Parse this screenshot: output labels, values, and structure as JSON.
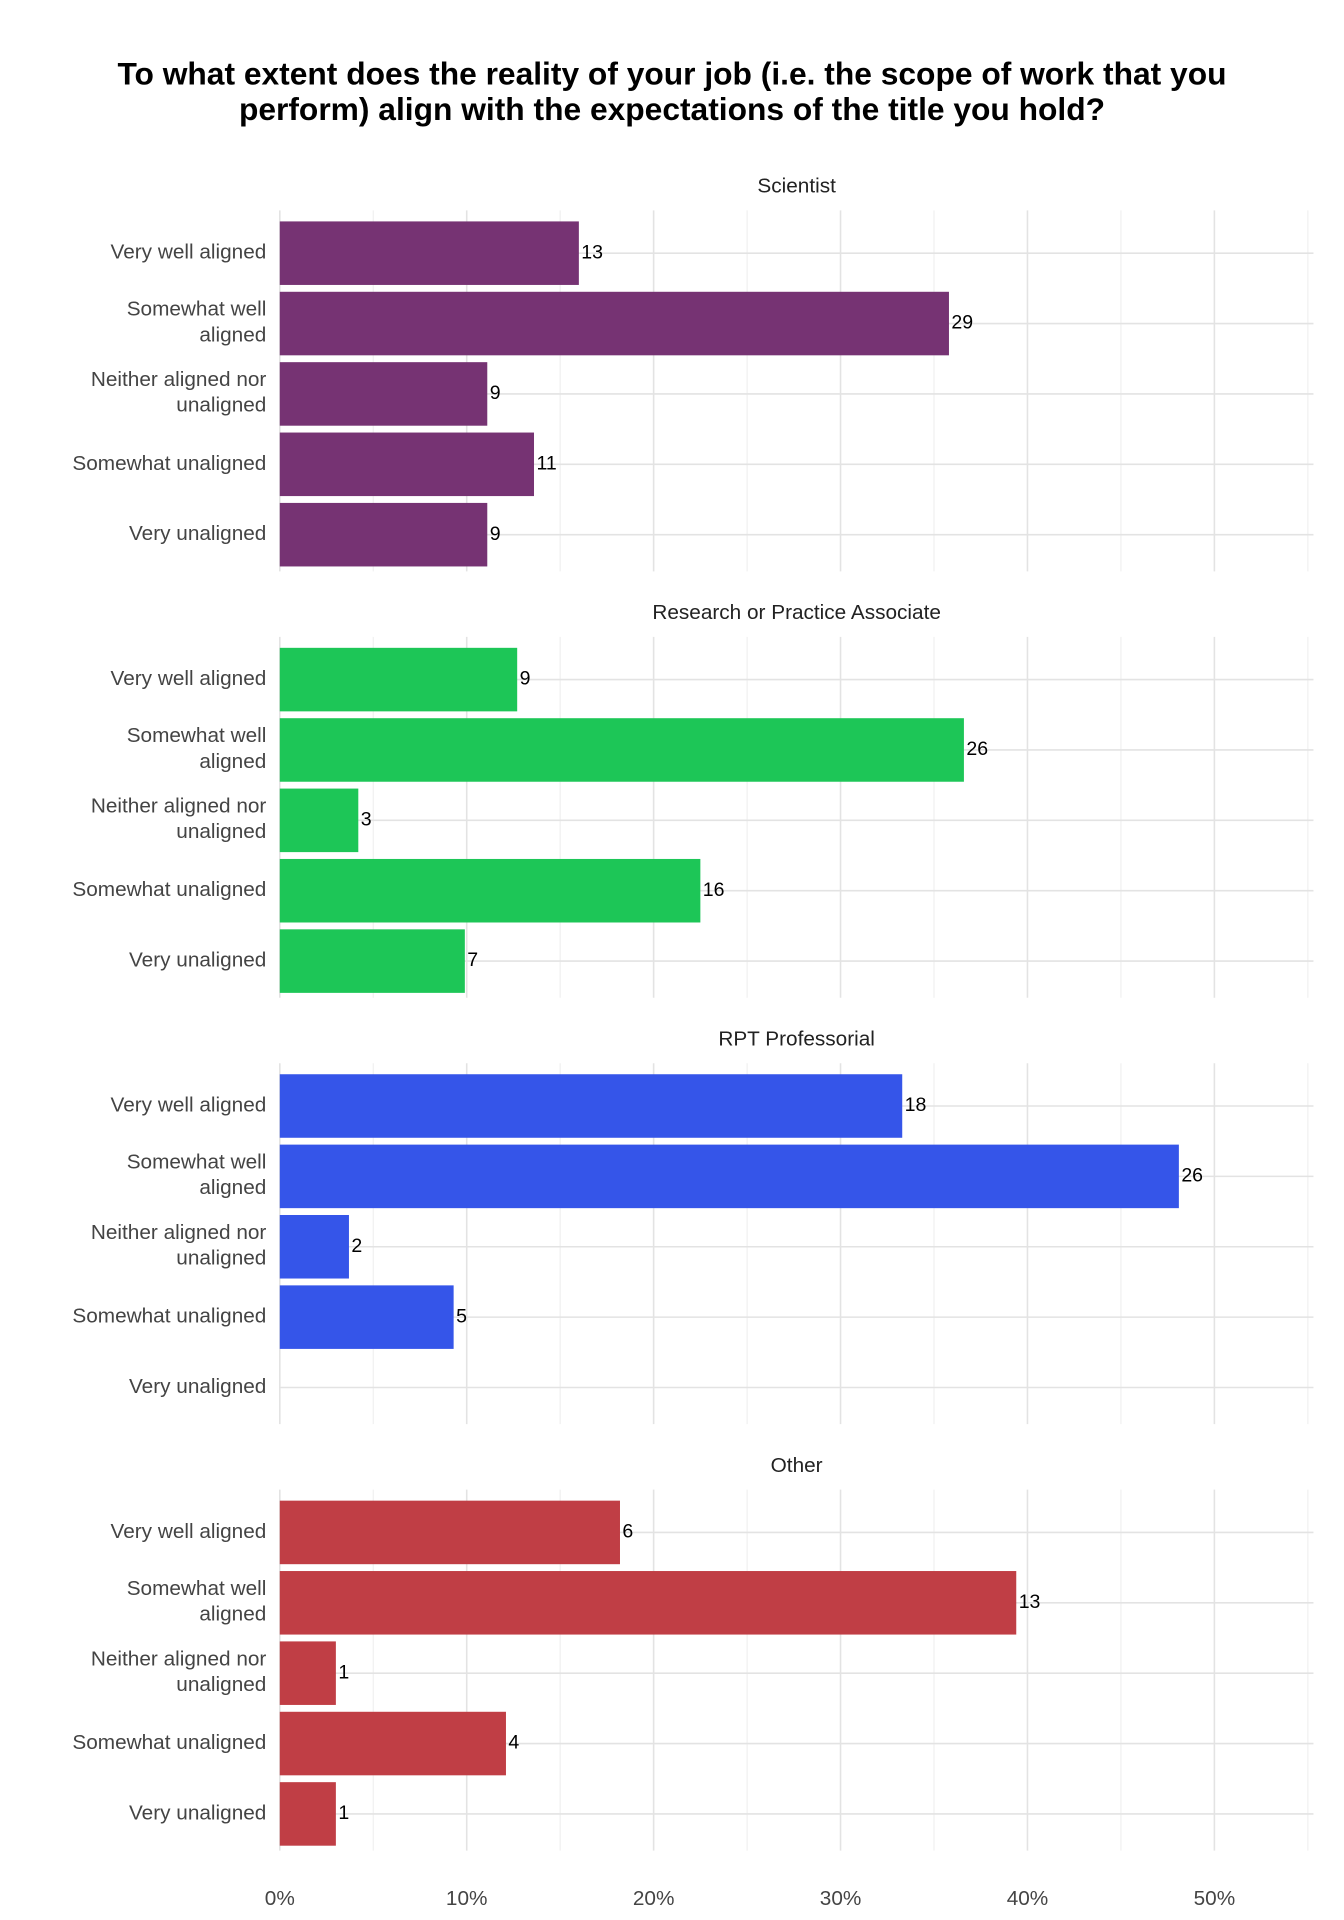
{
  "chart_data": {
    "type": "bar",
    "orientation": "horizontal",
    "title": "To what extent does the reality of your job (i.e. the scope of work that you perform) align with the expectations of the title you hold?",
    "categories": [
      "Very well aligned",
      "Somewhat well aligned",
      "Neither aligned nor unaligned",
      "Somewhat unaligned",
      "Very unaligned"
    ],
    "facets": [
      {
        "title": "Scientist",
        "color": "#763373",
        "values": [
          16.0,
          35.8,
          11.1,
          13.6,
          11.1
        ],
        "counts": [
          13,
          29,
          9,
          11,
          9
        ]
      },
      {
        "title": "Research or Practice Associate",
        "color": "#1dc657",
        "values": [
          12.7,
          36.6,
          4.2,
          22.5,
          9.9
        ],
        "counts": [
          9,
          26,
          3,
          16,
          7
        ]
      },
      {
        "title": "RPT Professorial",
        "color": "#3555e9",
        "values": [
          33.3,
          48.1,
          3.7,
          9.3,
          null
        ],
        "counts": [
          18,
          26,
          2,
          5,
          null
        ]
      },
      {
        "title": "Other",
        "color": "#c03e45",
        "values": [
          18.2,
          39.4,
          3.0,
          12.1,
          3.0
        ],
        "counts": [
          6,
          13,
          1,
          4,
          1
        ]
      }
    ],
    "xlim": [
      0,
      55.3
    ],
    "xticks": [
      {
        "value": 0,
        "label": "0%"
      },
      {
        "value": 10,
        "label": "10%"
      },
      {
        "value": 20,
        "label": "20%"
      },
      {
        "value": 30,
        "label": "30%"
      },
      {
        "value": 40,
        "label": "40%"
      },
      {
        "value": 50,
        "label": "50%"
      }
    ],
    "minor_xticks": [
      5,
      15,
      25,
      35,
      45,
      55
    ],
    "grid": true
  }
}
